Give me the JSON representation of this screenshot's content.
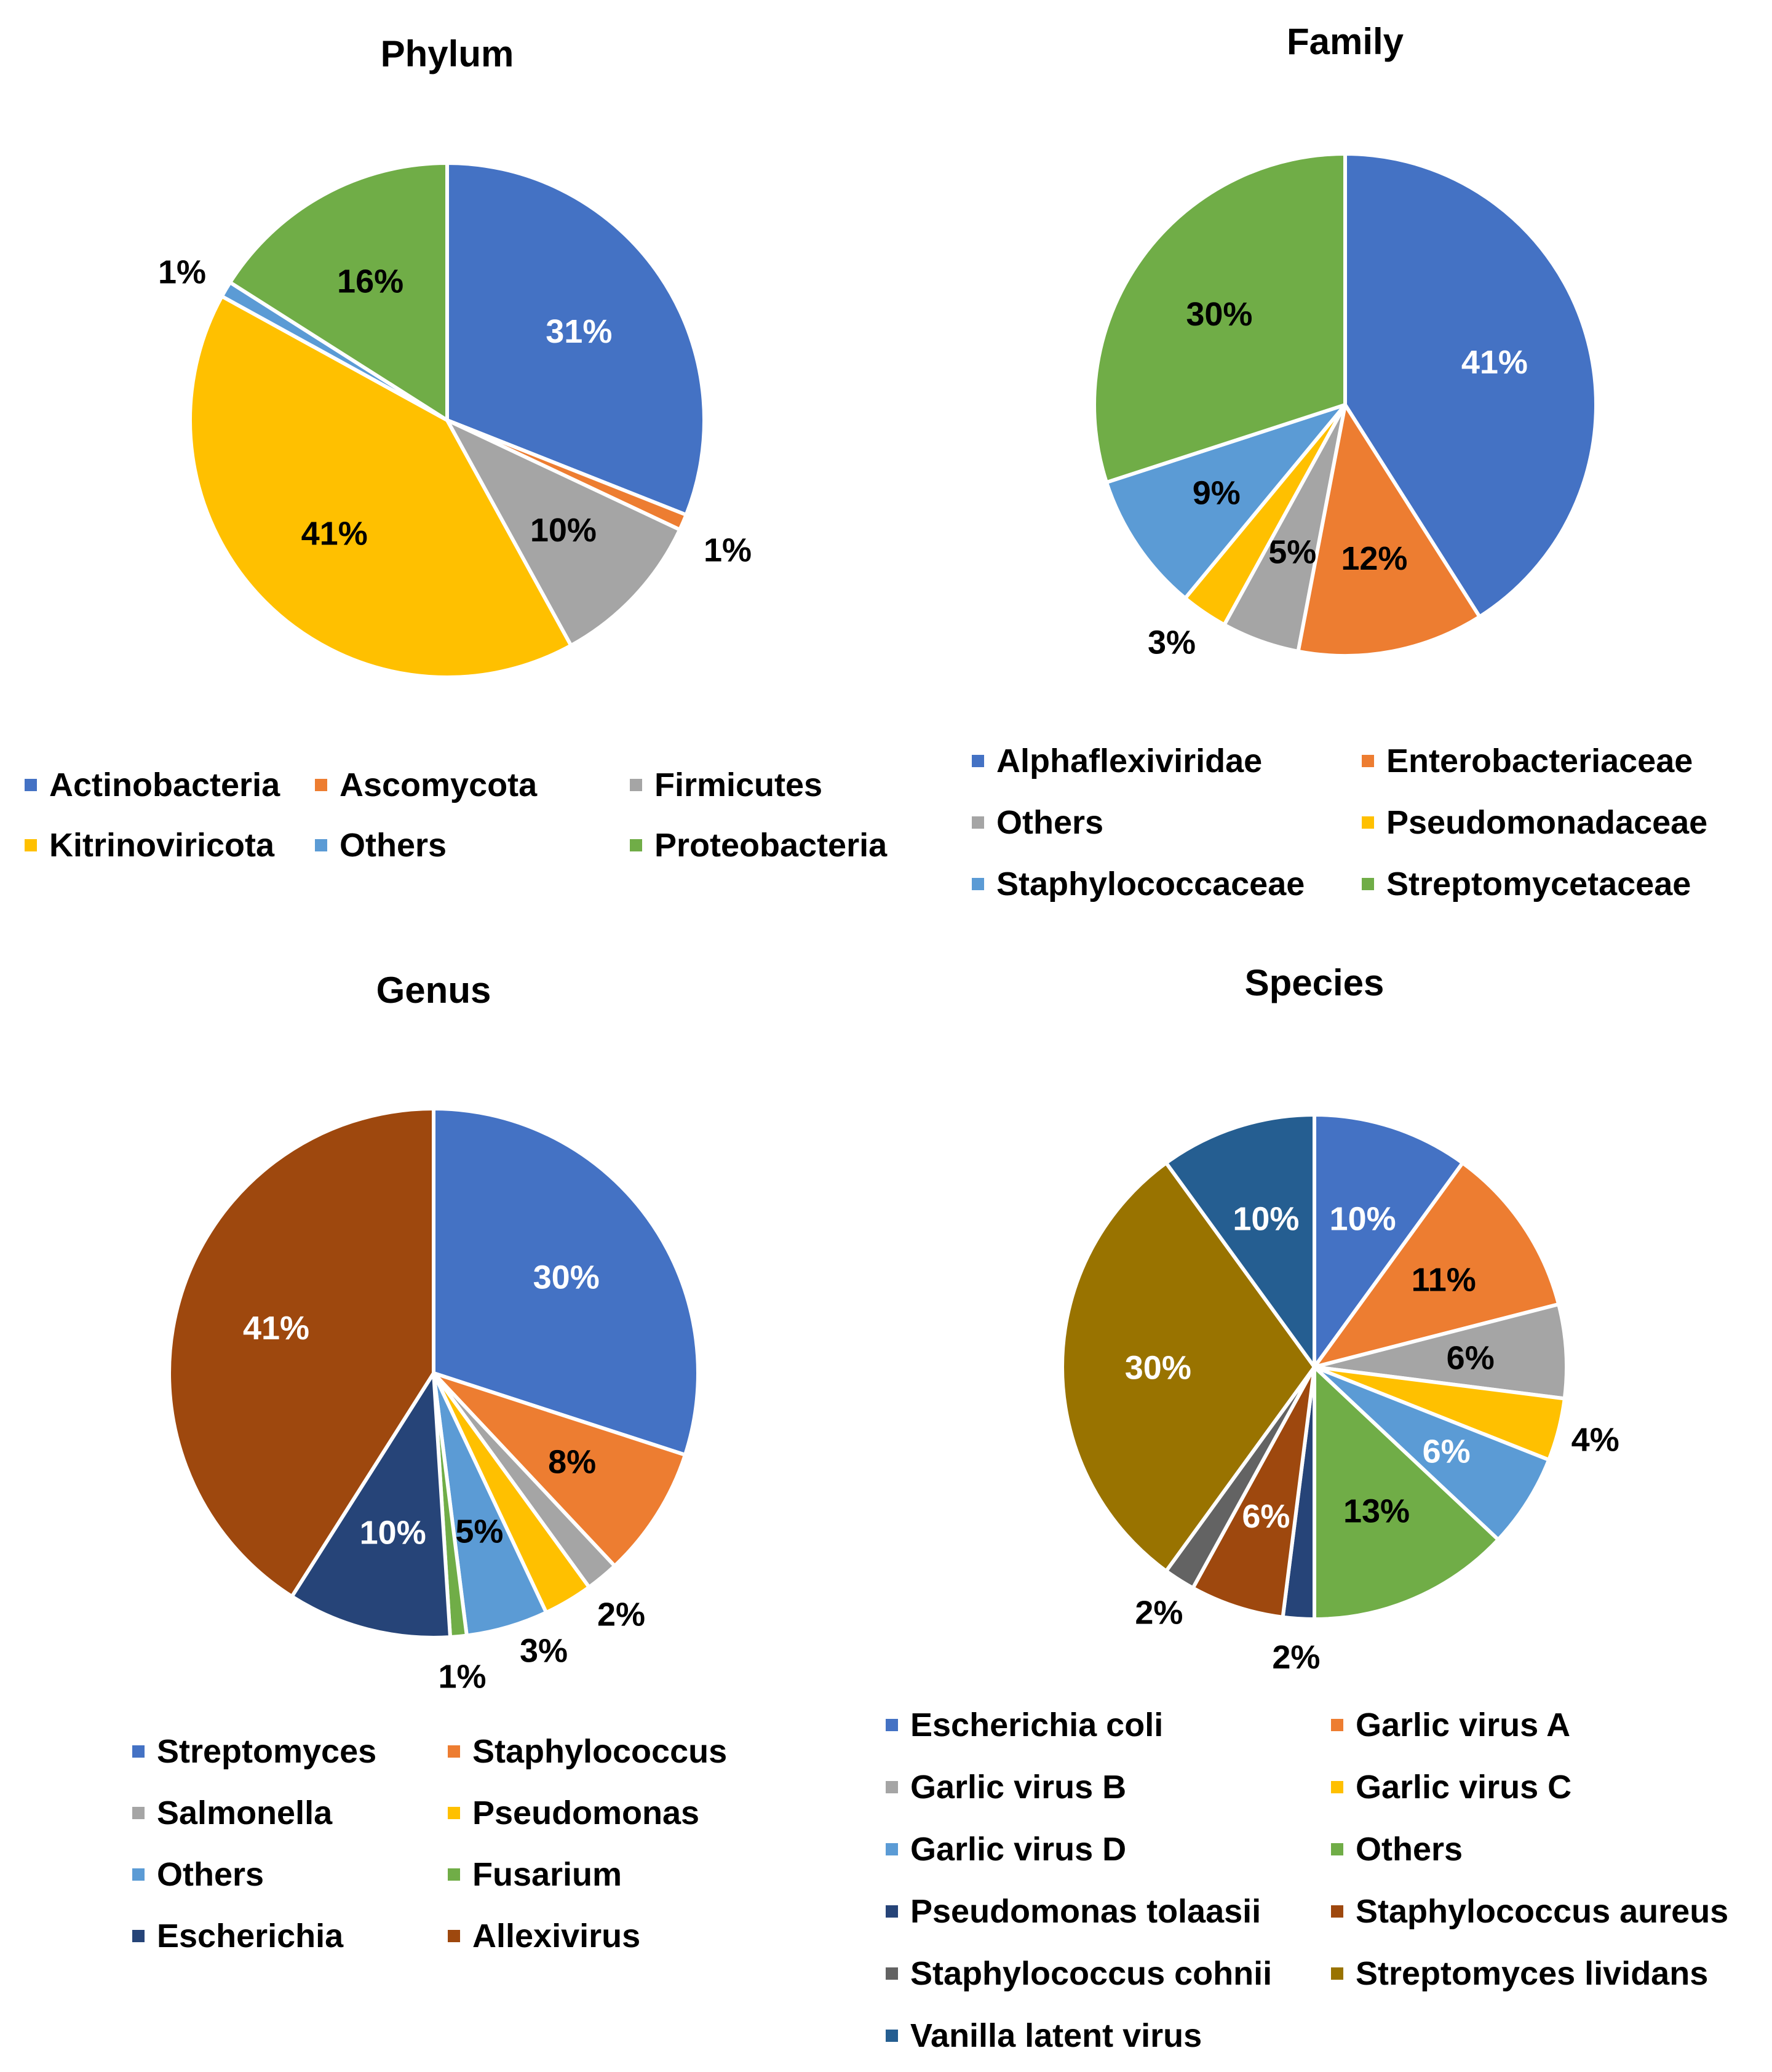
{
  "chart_data": [
    {
      "type": "pie",
      "title": "Phylum",
      "start_angle_deg": 0,
      "slices": [
        {
          "name": "Actinobacteria",
          "value": 31,
          "label": "31%",
          "color": "#4472C4",
          "label_color": "#ffffff",
          "label_pos": "inside"
        },
        {
          "name": "Ascomycota",
          "value": 1,
          "label": "1%",
          "color": "#ED7D31",
          "label_color": "#000000",
          "label_pos": "outside"
        },
        {
          "name": "Firmicutes",
          "value": 10,
          "label": "10%",
          "color": "#A5A5A5",
          "label_color": "#000000",
          "label_pos": "inside"
        },
        {
          "name": "Kitrinoviricota",
          "value": 41,
          "label": "41%",
          "color": "#FFC000",
          "label_color": "#000000",
          "label_pos": "inside"
        },
        {
          "name": "Others",
          "value": 1,
          "label": "1%",
          "color": "#5B9BD5",
          "label_color": "#000000",
          "label_pos": "outside"
        },
        {
          "name": "Proteobacteria",
          "value": 16,
          "label": "16%",
          "color": "#70AD47",
          "label_color": "#000000",
          "label_pos": "inside"
        }
      ],
      "legend_position": "bottom"
    },
    {
      "type": "pie",
      "title": "Family",
      "start_angle_deg": 0,
      "slices": [
        {
          "name": "Alphaflexiviridae",
          "value": 41,
          "label": "41%",
          "color": "#4472C4",
          "label_color": "#ffffff",
          "label_pos": "inside"
        },
        {
          "name": "Enterobacteriaceae",
          "value": 12,
          "label": "12%",
          "color": "#ED7D31",
          "label_color": "#000000",
          "label_pos": "inside"
        },
        {
          "name": "Others",
          "value": 5,
          "label": "5%",
          "color": "#A5A5A5",
          "label_color": "#000000",
          "label_pos": "inside"
        },
        {
          "name": "Pseudomonadaceae",
          "value": 3,
          "label": "3%",
          "color": "#FFC000",
          "label_color": "#000000",
          "label_pos": "outside"
        },
        {
          "name": "Staphylococcaceae",
          "value": 9,
          "label": "9%",
          "color": "#5B9BD5",
          "label_color": "#000000",
          "label_pos": "inside"
        },
        {
          "name": "Streptomycetaceae",
          "value": 30,
          "label": "30%",
          "color": "#70AD47",
          "label_color": "#000000",
          "label_pos": "inside"
        }
      ],
      "legend_position": "bottom"
    },
    {
      "type": "pie",
      "title": "Genus",
      "start_angle_deg": 0,
      "slices": [
        {
          "name": "Streptomyces",
          "value": 30,
          "label": "30%",
          "color": "#4472C4",
          "label_color": "#ffffff",
          "label_pos": "inside"
        },
        {
          "name": "Staphylococcus",
          "value": 8,
          "label": "8%",
          "color": "#ED7D31",
          "label_color": "#000000",
          "label_pos": "inside"
        },
        {
          "name": "Salmonella",
          "value": 2,
          "label": "2%",
          "color": "#A5A5A5",
          "label_color": "#000000",
          "label_pos": "outside"
        },
        {
          "name": "Pseudomonas",
          "value": 3,
          "label": "3%",
          "color": "#FFC000",
          "label_color": "#000000",
          "label_pos": "outside"
        },
        {
          "name": "Others",
          "value": 5,
          "label": "5%",
          "color": "#5B9BD5",
          "label_color": "#000000",
          "label_pos": "inside"
        },
        {
          "name": "Fusarium",
          "value": 1,
          "label": "1%",
          "color": "#70AD47",
          "label_color": "#000000",
          "label_pos": "outside"
        },
        {
          "name": "Escherichia",
          "value": 10,
          "label": "10%",
          "color": "#264478",
          "label_color": "#ffffff",
          "label_pos": "inside"
        },
        {
          "name": "Allexivirus",
          "value": 41,
          "label": "41%",
          "color": "#9E480E",
          "label_color": "#ffffff",
          "label_pos": "inside"
        }
      ],
      "legend_position": "bottom"
    },
    {
      "type": "pie",
      "title": "Species",
      "start_angle_deg": 0,
      "slices": [
        {
          "name": "Escherichia coli",
          "value": 10,
          "label": "10%",
          "color": "#4472C4",
          "label_color": "#ffffff",
          "label_pos": "inside"
        },
        {
          "name": "Garlic virus A",
          "value": 11,
          "label": "11%",
          "color": "#ED7D31",
          "label_color": "#000000",
          "label_pos": "inside"
        },
        {
          "name": "Garlic virus B",
          "value": 6,
          "label": "6%",
          "color": "#A5A5A5",
          "label_color": "#000000",
          "label_pos": "inside"
        },
        {
          "name": "Garlic virus C",
          "value": 4,
          "label": "4%",
          "color": "#FFC000",
          "label_color": "#000000",
          "label_pos": "outside"
        },
        {
          "name": "Garlic virus D",
          "value": 6,
          "label": "6%",
          "color": "#5B9BD5",
          "label_color": "#ffffff",
          "label_pos": "inside"
        },
        {
          "name": "Others",
          "value": 13,
          "label": "13%",
          "color": "#70AD47",
          "label_color": "#000000",
          "label_pos": "inside"
        },
        {
          "name": "Pseudomonas tolaasii",
          "value": 2,
          "label": "2%",
          "color": "#264478",
          "label_color": "#000000",
          "label_pos": "outside"
        },
        {
          "name": "Staphylococcus aureus",
          "value": 6,
          "label": "6%",
          "color": "#9E480E",
          "label_color": "#ffffff",
          "label_pos": "inside"
        },
        {
          "name": "Staphylococcus cohnii",
          "value": 2,
          "label": "2%",
          "color": "#636363",
          "label_color": "#000000",
          "label_pos": "outside"
        },
        {
          "name": "Streptomyces lividans",
          "value": 30,
          "label": "30%",
          "color": "#997300",
          "label_color": "#ffffff",
          "label_pos": "inside"
        },
        {
          "name": "Vanilla latent virus",
          "value": 10,
          "label": "10%",
          "color": "#255E91",
          "label_color": "#ffffff",
          "label_pos": "inside"
        }
      ],
      "legend_position": "bottom"
    }
  ]
}
